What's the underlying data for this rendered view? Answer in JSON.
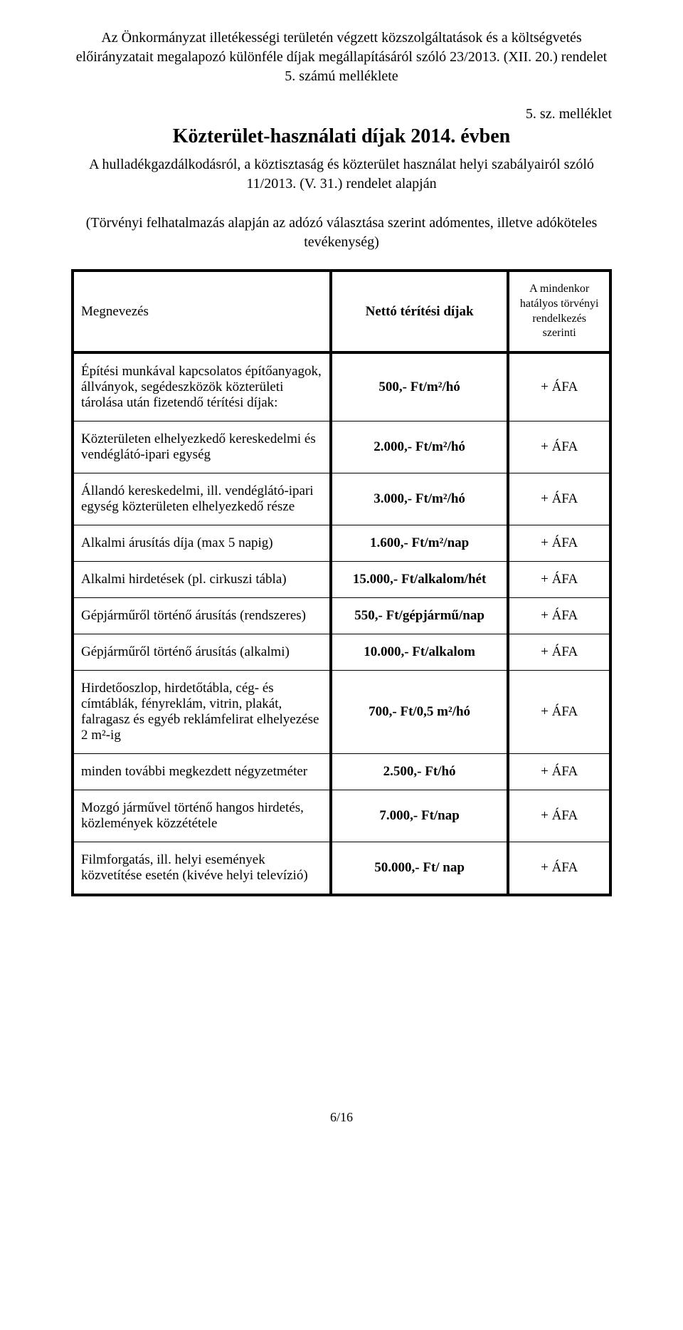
{
  "header": {
    "title_lines": "Az Önkormányzat illetékességi területén végzett közszolgáltatások és a költségvetés előirányzatait megalapozó különféle díjak megállapításáról szóló 23/2013. (XII. 20.) rendelet 5. számú melléklete"
  },
  "attachment_label": "5. sz. melléklet",
  "doc_heading": "Közterület-használati díjak 2014. évben",
  "under_heading": "A hulladékgazdálkodásról, a köztisztaság és közterület használat helyi szabályairól szóló 11/2013. (V. 31.) rendelet alapján",
  "note": "(Törvényi felhatalmazás alapján az adózó választása szerint adómentes, illetve adóköteles tevékenység)",
  "table": {
    "columns": {
      "name": "Megnevezés",
      "fee": "Nettó térítési díjak",
      "vat": "A mindenkor hatályos törvényi rendelkezés szerinti"
    },
    "rows": [
      {
        "name": "Építési munkával kapcsolatos építőanyagok, állványok, segédeszközök közterületi tárolása után fizetendő térítési díjak:",
        "fee": "500,- Ft/m²/hó",
        "vat": "+ ÁFA"
      },
      {
        "name": "Közterületen elhelyezkedő kereskedelmi és vendéglátó-ipari egység",
        "fee": "2.000,- Ft/m²/hó",
        "vat": "+ ÁFA"
      },
      {
        "name": "Állandó kereskedelmi, ill. vendéglátó-ipari egység közterületen elhelyezkedő része",
        "fee": "3.000,- Ft/m²/hó",
        "vat": "+ ÁFA"
      },
      {
        "name": "Alkalmi árusítás díja (max 5 napig)",
        "fee": "1.600,- Ft/m²/nap",
        "vat": "+ ÁFA"
      },
      {
        "name": "Alkalmi hirdetések (pl. cirkuszi tábla)",
        "fee": "15.000,- Ft/alkalom/hét",
        "vat": "+ ÁFA"
      },
      {
        "name": "Gépjárműről történő árusítás (rendszeres)",
        "fee": "550,- Ft/gépjármű/nap",
        "vat": "+ ÁFA"
      },
      {
        "name": "Gépjárműről történő árusítás (alkalmi)",
        "fee": "10.000,- Ft/alkalom",
        "vat": "+ ÁFA"
      },
      {
        "name": "Hirdetőoszlop, hirdetőtábla, cég- és címtáblák, fényreklám, vitrin, plakát, falragasz és egyéb reklámfelirat elhelyezése 2 m²-ig",
        "fee": "700,- Ft/0,5 m²/hó",
        "vat": "+ ÁFA"
      },
      {
        "name": "minden további megkezdett négyzetméter",
        "fee": "2.500,- Ft/hó",
        "vat": "+ ÁFA"
      },
      {
        "name": "Mozgó járművel történő hangos hirdetés, közlemények közzététele",
        "fee": "7.000,- Ft/nap",
        "vat": "+ ÁFA"
      },
      {
        "name": "Filmforgatás, ill. helyi események közvetítése esetén (kivéve helyi televízió)",
        "fee": "50.000,- Ft/ nap",
        "vat": "+ ÁFA"
      }
    ]
  },
  "page_number": "6/16"
}
